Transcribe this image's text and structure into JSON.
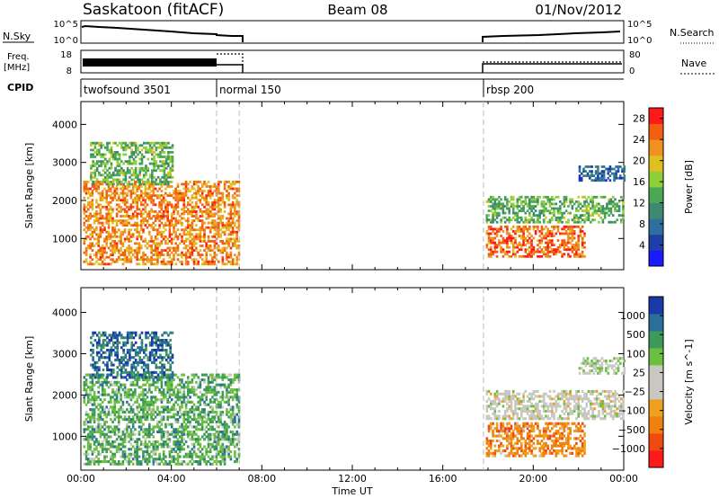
{
  "header": {
    "station": "Saskatoon (fitACF)",
    "beam": "Beam 08",
    "date": "01/Nov/2012"
  },
  "strip": {
    "nsky_label": "N.Sky",
    "nsky_ticks": [
      "10^5",
      "10^0"
    ],
    "nsearch_label": "N.Search",
    "freq_label_1": "Freq.",
    "freq_label_2": "[MHz]",
    "freq_ticks": [
      "18",
      "8"
    ],
    "nave_ticks": [
      "80",
      "0"
    ],
    "nave_label": "Nave",
    "cpid_label": "CPID",
    "modes": [
      {
        "label": "twofsound 3501",
        "start_h": 0
      },
      {
        "label": "normal 150",
        "start_h": 6
      },
      {
        "label": "rbsp 200",
        "start_h": 17.8
      }
    ]
  },
  "colors": {
    "power": [
      "#1a1aff",
      "#1e3fa8",
      "#2f6f9f",
      "#3e8a70",
      "#4aa855",
      "#8fcf3a",
      "#e0c020",
      "#f09020",
      "#f06010",
      "#ff1a1a"
    ],
    "velocity": [
      "#ff1a1a",
      "#f04a10",
      "#f08010",
      "#f0a020",
      "#c8c8c0",
      "#c8c8c0",
      "#6cc040",
      "#3e9a5a",
      "#2a6e9a",
      "#1a3aa8"
    ]
  },
  "chart_data": [
    {
      "type": "heatmap",
      "title": "Power",
      "xlabel": "Time UT",
      "ylabel": "Slant Range [km]",
      "colorbar_label": "Power [dB]",
      "x_ticks": [
        "00:00",
        "04:00",
        "08:00",
        "12:00",
        "16:00",
        "20:00",
        "00:00"
      ],
      "xlim": [
        0,
        24
      ],
      "ylim": [
        180,
        4600
      ],
      "y_ticks": [
        1000,
        2000,
        3000,
        4000
      ],
      "colorbar_ticks": [
        4,
        8,
        12,
        16,
        20,
        24,
        28
      ],
      "clim": [
        0,
        30
      ],
      "regions": [
        {
          "t0": 0.1,
          "t1": 7.0,
          "r0": 300,
          "r1": 2500,
          "center": 24
        },
        {
          "t0": 0.4,
          "t1": 4.0,
          "r0": 2400,
          "r1": 3500,
          "center": 14
        },
        {
          "t0": 17.9,
          "t1": 22.3,
          "r0": 500,
          "r1": 1300,
          "center": 26
        },
        {
          "t0": 17.9,
          "t1": 24.0,
          "r0": 1400,
          "r1": 2100,
          "center": 14
        },
        {
          "t0": 22.0,
          "t1": 24.0,
          "r0": 2500,
          "r1": 2900,
          "center": 6
        }
      ]
    },
    {
      "type": "heatmap",
      "title": "Velocity",
      "xlabel": "Time UT",
      "ylabel": "Slant Range [km]",
      "colorbar_label": "Velocity [m s^-1]",
      "x_ticks": [
        "00:00",
        "04:00",
        "08:00",
        "12:00",
        "16:00",
        "20:00",
        "00:00"
      ],
      "xlim": [
        0,
        24
      ],
      "ylim": [
        180,
        4600
      ],
      "y_ticks": [
        1000,
        2000,
        3000,
        4000
      ],
      "colorbar_ticks": [
        "1000",
        "500",
        "100",
        "25",
        "−25",
        "−100",
        "−500",
        "−1000"
      ],
      "regions": [
        {
          "t0": 0.1,
          "t1": 7.0,
          "r0": 300,
          "r1": 2500,
          "center": 6.5
        },
        {
          "t0": 0.4,
          "t1": 4.0,
          "r0": 2400,
          "r1": 3500,
          "center": 8
        },
        {
          "t0": 17.9,
          "t1": 22.3,
          "r0": 500,
          "r1": 1300,
          "center": 2.3
        },
        {
          "t0": 17.9,
          "t1": 24.0,
          "r0": 1400,
          "r1": 2100,
          "center": 4.5
        },
        {
          "t0": 22.0,
          "t1": 24.0,
          "r0": 2500,
          "r1": 2900,
          "center": 5
        }
      ]
    }
  ]
}
